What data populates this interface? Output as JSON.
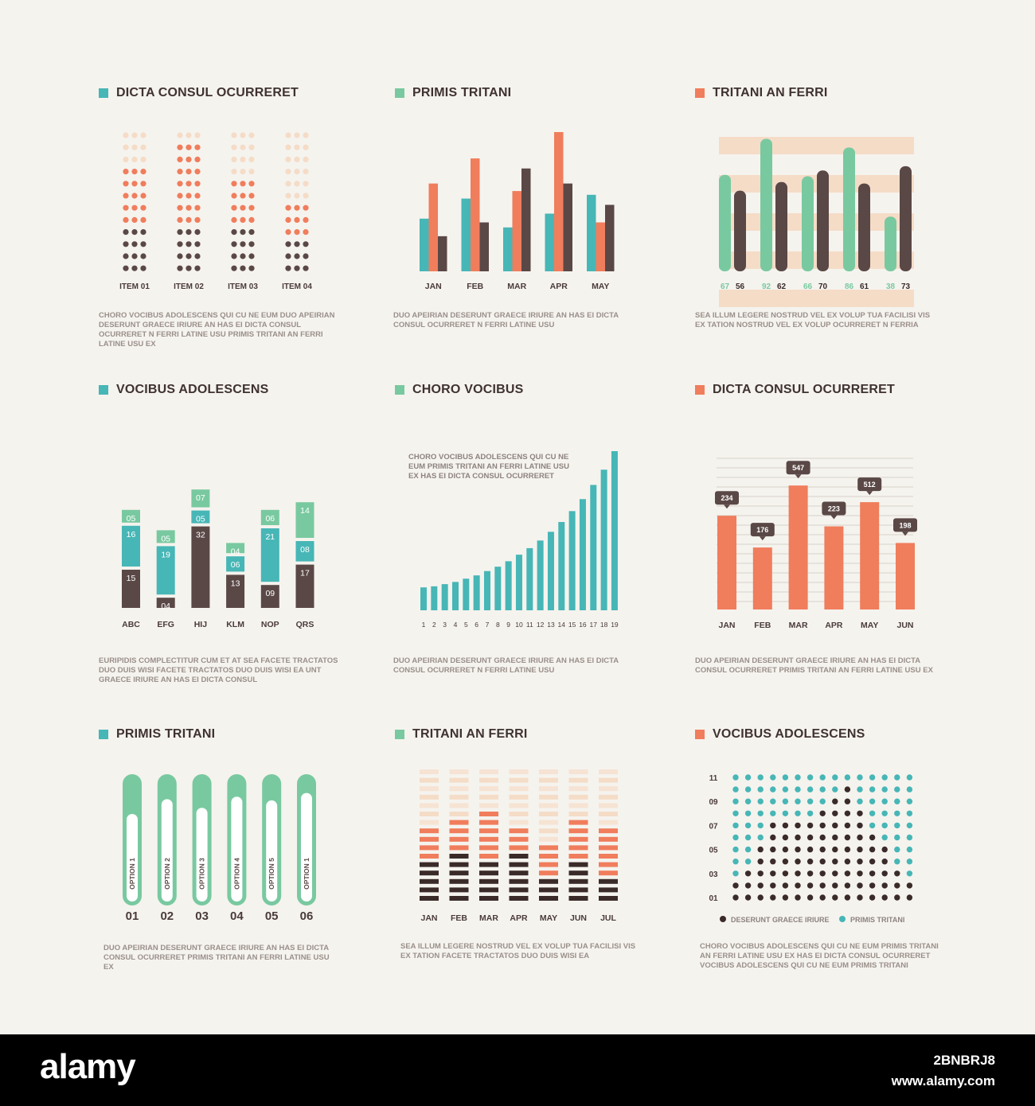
{
  "colors": {
    "teal": "#47b6b6",
    "orange": "#f07d5c",
    "dark": "#5a4846",
    "green": "#79c9a0",
    "peach": "#f5dcc7",
    "lightpeach": "#f6e3d3",
    "darkest": "#3a2b29"
  },
  "footer": {
    "logo": "alamy",
    "image_id": "2BNBRJ8",
    "url": "www.alamy.com"
  },
  "chart_data": [
    {
      "id": "c1",
      "type": "dot-matrix",
      "title": "DICTA CONSUL OCURRERET",
      "title_color": "teal",
      "categories": [
        "ITEM 01",
        "ITEM 02",
        "ITEM 03",
        "ITEM 04"
      ],
      "rows": 12,
      "dots_per_row": 3,
      "series_colors": [
        "dark",
        "orange",
        "peach"
      ],
      "filled_rows": [
        {
          "dark": 4,
          "orange": 5
        },
        {
          "dark": 4,
          "orange": 7
        },
        {
          "dark": 4,
          "orange": 4
        },
        {
          "dark": 3,
          "orange": 3
        }
      ],
      "description": "CHORO VOCIBUS ADOLESCENS QUI CU NE EUM DUO APEIRIAN DESERUNT GRAECE IRIURE AN HAS EI DICTA CONSUL OCURRERET N FERRI LATINE USU PRIMIS TRITANI AN FERRI LATINE USU EX"
    },
    {
      "id": "c2",
      "type": "bar",
      "title": "PRIMIS TRITANI",
      "title_color": "green",
      "categories": [
        "JAN",
        "FEB",
        "MAR",
        "APR",
        "MAY"
      ],
      "series": [
        {
          "color": "teal",
          "values": [
            42,
            58,
            35,
            46,
            61
          ]
        },
        {
          "color": "orange",
          "values": [
            70,
            90,
            64,
            111,
            39
          ]
        },
        {
          "color": "dark",
          "values": [
            28,
            39,
            82,
            70,
            53
          ]
        }
      ],
      "ylim": [
        0,
        111
      ],
      "description": "DUO APEIRIAN DESERUNT GRAECE IRIURE AN HAS EI DICTA CONSUL OCURRERET N FERRI LATINE USU"
    },
    {
      "id": "c3",
      "type": "bar",
      "title": "TRITANI AN FERRI",
      "title_color": "orange",
      "pairs": [
        {
          "a": 67,
          "b": 56
        },
        {
          "a": 92,
          "b": 62
        },
        {
          "a": 66,
          "b": 70
        },
        {
          "a": 86,
          "b": 61
        },
        {
          "a": 38,
          "b": 73
        }
      ],
      "series_colors": [
        "green",
        "dark"
      ],
      "ylim": [
        0,
        100
      ],
      "description": "SEA ILLUM LEGERE NOSTRUD VEL EX VOLUP TUA FACILISI VIS EX TATION NOSTRUD VEL EX VOLUP OCURRERET N FERRIA"
    },
    {
      "id": "c4",
      "type": "stacked-bar",
      "title": "VOCIBUS ADOLESCENS",
      "title_color": "teal",
      "categories": [
        "ABC",
        "EFG",
        "HIJ",
        "KLM",
        "NOP",
        "QRS"
      ],
      "stacks": [
        [
          {
            "v": 15,
            "label": "15",
            "c": "dark"
          },
          {
            "v": 16,
            "label": "16",
            "c": "teal"
          },
          {
            "v": 5,
            "label": "05",
            "c": "green"
          }
        ],
        [
          {
            "v": 4,
            "label": "04",
            "c": "dark"
          },
          {
            "v": 19,
            "label": "19",
            "c": "teal"
          },
          {
            "v": 5,
            "label": "05",
            "c": "green"
          }
        ],
        [
          {
            "v": 32,
            "label": "32",
            "c": "dark"
          },
          {
            "v": 5,
            "label": "05",
            "c": "teal"
          },
          {
            "v": 7,
            "label": "07",
            "c": "green"
          }
        ],
        [
          {
            "v": 13,
            "label": "13",
            "c": "dark"
          },
          {
            "v": 6,
            "label": "06",
            "c": "teal"
          },
          {
            "v": 4,
            "label": "04",
            "c": "green"
          }
        ],
        [
          {
            "v": 9,
            "label": "09",
            "c": "dark"
          },
          {
            "v": 21,
            "label": "21",
            "c": "teal"
          },
          {
            "v": 6,
            "label": "06",
            "c": "green"
          }
        ],
        [
          {
            "v": 17,
            "label": "17",
            "c": "dark"
          },
          {
            "v": 8,
            "label": "08",
            "c": "teal"
          },
          {
            "v": 14,
            "label": "14",
            "c": "green"
          }
        ]
      ],
      "description": "EURIPIDIS COMPLECTITUR CUM ET AT SEA FACETE TRACTATOS DUO DUIS WISI FACETE TRACTATOS DUO DUIS WISI EA UNT GRAECE IRIURE AN HAS EI DICTA CONSUL"
    },
    {
      "id": "c5",
      "type": "bar",
      "title": "CHORO VOCIBUS",
      "title_color": "green",
      "annotation": "CHORO VOCIBUS ADOLESCENS QUI CU NE EUM PRIMIS TRITANI AN FERRI LATINE USU EX HAS EI DICTA CONSUL OCURRERET",
      "categories": [
        "1",
        "2",
        "3",
        "4",
        "5",
        "6",
        "7",
        "8",
        "9",
        "10",
        "11",
        "12",
        "13",
        "14",
        "15",
        "16",
        "17",
        "18",
        "19"
      ],
      "values": [
        21,
        22,
        24,
        26,
        29,
        32,
        36,
        40,
        45,
        51,
        57,
        64,
        72,
        81,
        91,
        102,
        115,
        129,
        146
      ],
      "ylim": [
        0,
        146
      ],
      "color": "teal",
      "description": "DUO APEIRIAN DESERUNT GRAECE IRIURE AN HAS EI DICTA CONSUL OCURRERET N FERRI LATINE USU"
    },
    {
      "id": "c6",
      "type": "bar",
      "title": "DICTA CONSUL OCURRERET",
      "title_color": "orange",
      "categories": [
        "JAN",
        "FEB",
        "MAR",
        "APR",
        "MAY",
        "JUN"
      ],
      "values": [
        234,
        176,
        547,
        223,
        512,
        198
      ],
      "value_labels": [
        "234",
        "176",
        "547",
        "223",
        "512",
        "198"
      ],
      "bar_fraction": [
        0.62,
        0.41,
        0.82,
        0.55,
        0.71,
        0.44
      ],
      "color": "orange",
      "description": "DUO APEIRIAN DESERUNT GRAECE IRIURE AN HAS EI DICTA CONSUL OCURRERET PRIMIS TRITANI AN FERRI LATINE USU EX"
    },
    {
      "id": "c7",
      "type": "progress",
      "title": "PRIMIS TRITANI",
      "title_color": "teal",
      "items": [
        {
          "num": "01",
          "label": "OPTION 1",
          "fill": 0.71
        },
        {
          "num": "02",
          "label": "OPTION 2",
          "fill": 0.83
        },
        {
          "num": "03",
          "label": "OPTION 3",
          "fill": 0.76
        },
        {
          "num": "04",
          "label": "OPTION 4",
          "fill": 0.85
        },
        {
          "num": "05",
          "label": "OPTION 5",
          "fill": 0.82
        },
        {
          "num": "06",
          "label": "OPTION 1",
          "fill": 0.88
        }
      ],
      "description": "DUO APEIRIAN DESERUNT GRAECE IRIURE AN HAS EI DICTA CONSUL OCURRERET PRIMIS TRITANI AN FERRI LATINE USU EX"
    },
    {
      "id": "c8",
      "type": "stacked-segments",
      "title": "TRITANI AN FERRI",
      "title_color": "green",
      "categories": [
        "JAN",
        "FEB",
        "MAR",
        "APR",
        "MAY",
        "JUN",
        "JUL"
      ],
      "total_segments": 16,
      "columns": [
        {
          "dark": 5,
          "orange": 4
        },
        {
          "dark": 6,
          "orange": 4
        },
        {
          "dark": 5,
          "orange": 6
        },
        {
          "dark": 6,
          "orange": 3
        },
        {
          "dark": 3,
          "orange": 4
        },
        {
          "dark": 5,
          "orange": 5
        },
        {
          "dark": 3,
          "orange": 6
        }
      ],
      "description": "SEA ILLUM LEGERE NOSTRUD VEL EX VOLUP TUA FACILISI VIS EX TATION FACETE TRACTATOS DUO DUIS WISI EA"
    },
    {
      "id": "c9",
      "type": "dot-grid",
      "title": "VOCIBUS ADOLESCENS",
      "title_color": "orange",
      "y_labels": [
        "11",
        "09",
        "07",
        "05",
        "03",
        "01"
      ],
      "rows": 11,
      "cols": 15,
      "dark_per_col": [
        2,
        3,
        5,
        7,
        7,
        7,
        7,
        8,
        9,
        10,
        8,
        6,
        5,
        3,
        2
      ],
      "legend": [
        {
          "label": "DESERUNT GRAECE IRIURE",
          "color": "darkest"
        },
        {
          "label": "PRIMIS TRITANI",
          "color": "teal"
        }
      ],
      "description": "CHORO VOCIBUS ADOLESCENS QUI CU NE EUM PRIMIS TRITANI AN FERRI LATINE USU EX HAS EI DICTA CONSUL OCURRERET VOCIBUS ADOLESCENS QUI CU NE EUM PRIMIS TRITANI"
    }
  ]
}
